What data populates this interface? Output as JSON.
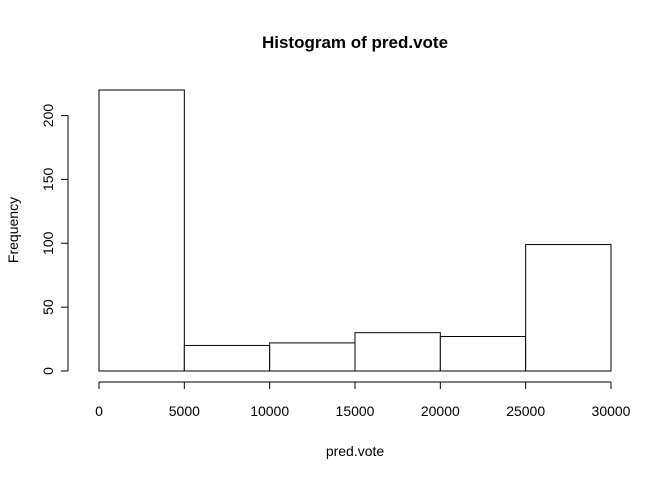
{
  "chart_data": {
    "type": "bar",
    "title": "Histogram of pred.vote",
    "xlabel": "pred.vote",
    "ylabel": "Frequency",
    "bins": [
      {
        "start": 0,
        "end": 5000,
        "count": 220
      },
      {
        "start": 5000,
        "end": 10000,
        "count": 20
      },
      {
        "start": 10000,
        "end": 15000,
        "count": 22
      },
      {
        "start": 15000,
        "end": 20000,
        "count": 30
      },
      {
        "start": 20000,
        "end": 25000,
        "count": 27
      },
      {
        "start": 25000,
        "end": 30000,
        "count": 99
      }
    ],
    "xlim": [
      0,
      30000
    ],
    "ylim": [
      0,
      220
    ],
    "x_ticks": [
      0,
      5000,
      10000,
      15000,
      20000,
      25000,
      30000
    ],
    "x_tick_labels": [
      "0",
      "5000",
      "10000",
      "15000",
      "20000",
      "25000",
      "30000"
    ],
    "y_ticks": [
      0,
      50,
      100,
      150,
      200
    ],
    "y_tick_labels": [
      "0",
      "50",
      "100",
      "150",
      "200"
    ],
    "grid": false,
    "bar_fill": "#ffffff",
    "bar_stroke": "#000000"
  }
}
